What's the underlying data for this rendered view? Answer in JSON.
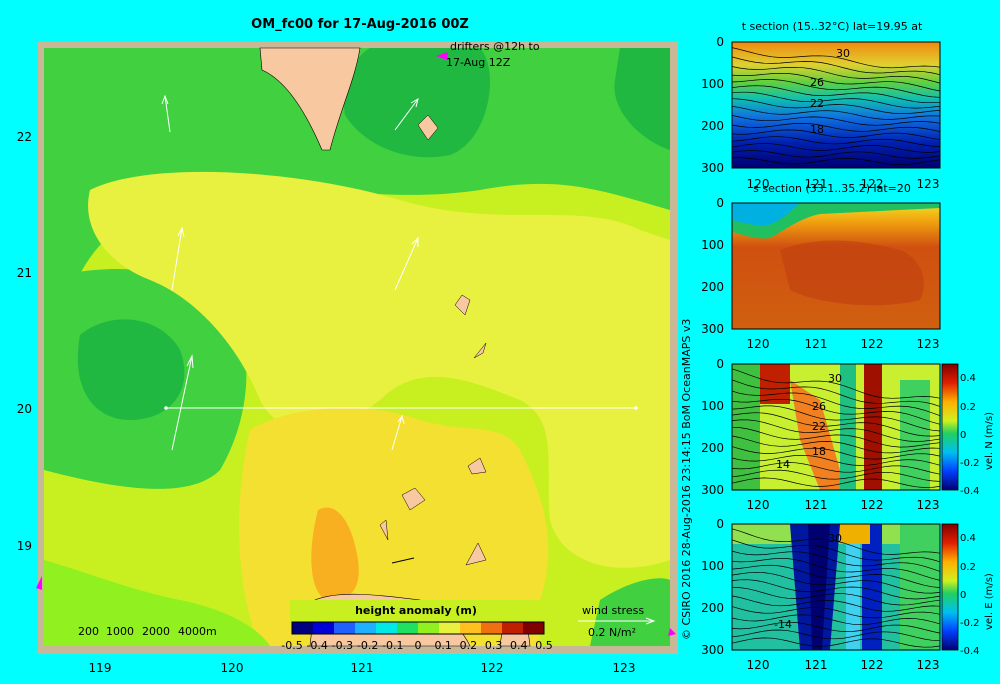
{
  "title": "OM_fc00 for 17-Aug-2016 00Z",
  "drifters_note": [
    "drifters @12h to",
    "17-Aug 12Z"
  ],
  "depth_legend": [
    "200",
    "1000",
    "2000",
    "4000m"
  ],
  "wind_stress": {
    "label": "wind stress",
    "scale": "0.2 N/m²"
  },
  "colorbar": {
    "title": "height anomaly (m)",
    "ticks": [
      "-0.5",
      "-0.4",
      "-0.3",
      "-0.2",
      "-0.1",
      "0",
      "0.1",
      "0.2",
      "0.3",
      "0.4",
      "0.5"
    ],
    "colors": [
      "#000080",
      "#0000d8",
      "#2060ff",
      "#20b0ff",
      "#00e8e8",
      "#20e060",
      "#90f020",
      "#e8f040",
      "#ffc020",
      "#f07010",
      "#c02000",
      "#800000"
    ]
  },
  "map": {
    "lon_ticks": [
      "119",
      "120",
      "121",
      "122",
      "123"
    ],
    "lat_ticks": [
      "22",
      "21",
      "20",
      "19"
    ]
  },
  "credit": "© CSIRO 2016   28-Aug-2016 23:14:15 BoM OceanMAPS v3",
  "panels": [
    {
      "title": "t section (15..32°C) lat=19.95 at",
      "y_ticks": [
        "0",
        "100",
        "200",
        "300"
      ],
      "x_ticks": [
        "120",
        "121",
        "122",
        "123"
      ],
      "contour_labels": [
        "30",
        "26",
        "22",
        "18"
      ]
    },
    {
      "title": "s section (33.1..35.2) lat=20",
      "y_ticks": [
        "0",
        "100",
        "200",
        "300"
      ],
      "x_ticks": [
        "120",
        "121",
        "122",
        "123"
      ]
    },
    {
      "title": "",
      "y_ticks": [
        "0",
        "100",
        "200",
        "300"
      ],
      "x_ticks": [
        "120",
        "121",
        "122",
        "123"
      ],
      "contour_labels": [
        "30",
        "26",
        "22",
        "18",
        "14"
      ],
      "bar_label": "vel. N (m/s)",
      "bar_ticks": [
        "0.4",
        "0.2",
        "0",
        "-0.2",
        "-0.4"
      ]
    },
    {
      "title": "",
      "y_ticks": [
        "0",
        "100",
        "200",
        "300"
      ],
      "x_ticks": [
        "120",
        "121",
        "122",
        "123"
      ],
      "contour_labels": [
        "30",
        "-14"
      ],
      "bar_label": "vel. E (m/s)",
      "bar_ticks": [
        "0.4",
        "0.2",
        "0",
        "-0.2",
        "-0.4"
      ]
    }
  ]
}
